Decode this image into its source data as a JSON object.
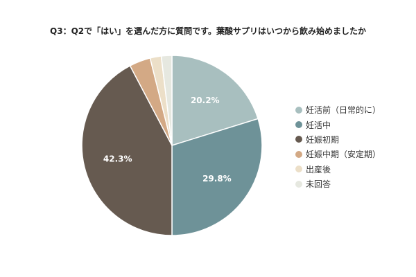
{
  "chart_data": {
    "type": "pie",
    "title": "Q3：Q2で「はい」を選んだ方に質問です。葉酸サプリはいつから飲み始めましたか",
    "legend_position": "right",
    "slices": [
      {
        "name": "妊活前（日常的に）",
        "value": 20.2,
        "label": "20.2%",
        "color": "#a8bfbf"
      },
      {
        "name": "妊活中",
        "value": 29.8,
        "label": "29.8%",
        "color": "#6e9298"
      },
      {
        "name": "妊娠初期",
        "value": 42.3,
        "label": "42.3%",
        "color": "#665a50"
      },
      {
        "name": "妊娠中期（安定期）",
        "value": 3.8,
        "label": "",
        "color": "#d3a985"
      },
      {
        "name": "出産後",
        "value": 2.0,
        "label": "",
        "color": "#ecdfc8"
      },
      {
        "name": "未回答",
        "value": 1.9,
        "label": "",
        "color": "#e6e8e0"
      }
    ]
  }
}
